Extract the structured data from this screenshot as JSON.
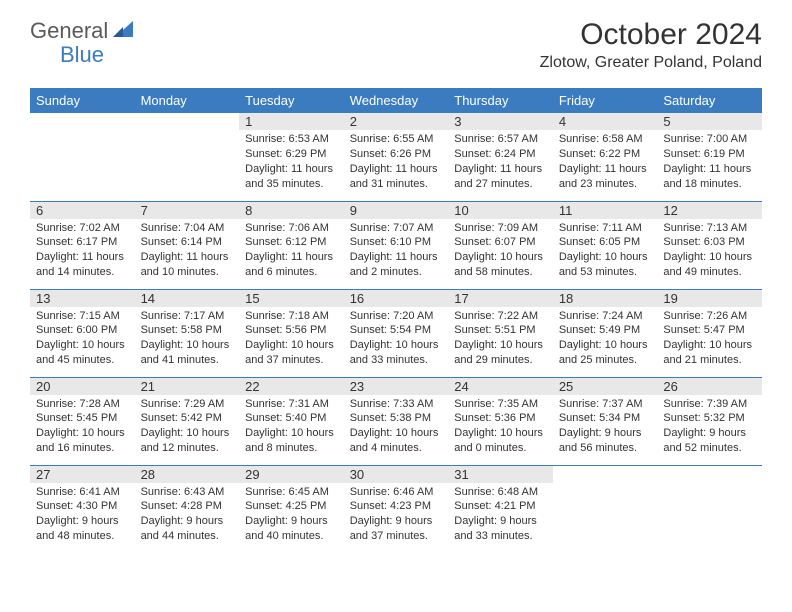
{
  "logo": {
    "part1": "General",
    "part2": "Blue"
  },
  "title": "October 2024",
  "location": "Zlotow, Greater Poland, Poland",
  "colors": {
    "accent": "#3b7bbf",
    "text": "#333333",
    "shade": "#e8e8e8"
  },
  "daynames": [
    "Sunday",
    "Monday",
    "Tuesday",
    "Wednesday",
    "Thursday",
    "Friday",
    "Saturday"
  ],
  "weeks": [
    [
      null,
      null,
      {
        "n": "1",
        "sr": "6:53 AM",
        "ss": "6:29 PM",
        "dl": "11 hours and 35 minutes."
      },
      {
        "n": "2",
        "sr": "6:55 AM",
        "ss": "6:26 PM",
        "dl": "11 hours and 31 minutes."
      },
      {
        "n": "3",
        "sr": "6:57 AM",
        "ss": "6:24 PM",
        "dl": "11 hours and 27 minutes."
      },
      {
        "n": "4",
        "sr": "6:58 AM",
        "ss": "6:22 PM",
        "dl": "11 hours and 23 minutes."
      },
      {
        "n": "5",
        "sr": "7:00 AM",
        "ss": "6:19 PM",
        "dl": "11 hours and 18 minutes."
      }
    ],
    [
      {
        "n": "6",
        "sr": "7:02 AM",
        "ss": "6:17 PM",
        "dl": "11 hours and 14 minutes."
      },
      {
        "n": "7",
        "sr": "7:04 AM",
        "ss": "6:14 PM",
        "dl": "11 hours and 10 minutes."
      },
      {
        "n": "8",
        "sr": "7:06 AM",
        "ss": "6:12 PM",
        "dl": "11 hours and 6 minutes."
      },
      {
        "n": "9",
        "sr": "7:07 AM",
        "ss": "6:10 PM",
        "dl": "11 hours and 2 minutes."
      },
      {
        "n": "10",
        "sr": "7:09 AM",
        "ss": "6:07 PM",
        "dl": "10 hours and 58 minutes."
      },
      {
        "n": "11",
        "sr": "7:11 AM",
        "ss": "6:05 PM",
        "dl": "10 hours and 53 minutes."
      },
      {
        "n": "12",
        "sr": "7:13 AM",
        "ss": "6:03 PM",
        "dl": "10 hours and 49 minutes."
      }
    ],
    [
      {
        "n": "13",
        "sr": "7:15 AM",
        "ss": "6:00 PM",
        "dl": "10 hours and 45 minutes."
      },
      {
        "n": "14",
        "sr": "7:17 AM",
        "ss": "5:58 PM",
        "dl": "10 hours and 41 minutes."
      },
      {
        "n": "15",
        "sr": "7:18 AM",
        "ss": "5:56 PM",
        "dl": "10 hours and 37 minutes."
      },
      {
        "n": "16",
        "sr": "7:20 AM",
        "ss": "5:54 PM",
        "dl": "10 hours and 33 minutes."
      },
      {
        "n": "17",
        "sr": "7:22 AM",
        "ss": "5:51 PM",
        "dl": "10 hours and 29 minutes."
      },
      {
        "n": "18",
        "sr": "7:24 AM",
        "ss": "5:49 PM",
        "dl": "10 hours and 25 minutes."
      },
      {
        "n": "19",
        "sr": "7:26 AM",
        "ss": "5:47 PM",
        "dl": "10 hours and 21 minutes."
      }
    ],
    [
      {
        "n": "20",
        "sr": "7:28 AM",
        "ss": "5:45 PM",
        "dl": "10 hours and 16 minutes."
      },
      {
        "n": "21",
        "sr": "7:29 AM",
        "ss": "5:42 PM",
        "dl": "10 hours and 12 minutes."
      },
      {
        "n": "22",
        "sr": "7:31 AM",
        "ss": "5:40 PM",
        "dl": "10 hours and 8 minutes."
      },
      {
        "n": "23",
        "sr": "7:33 AM",
        "ss": "5:38 PM",
        "dl": "10 hours and 4 minutes."
      },
      {
        "n": "24",
        "sr": "7:35 AM",
        "ss": "5:36 PM",
        "dl": "10 hours and 0 minutes."
      },
      {
        "n": "25",
        "sr": "7:37 AM",
        "ss": "5:34 PM",
        "dl": "9 hours and 56 minutes."
      },
      {
        "n": "26",
        "sr": "7:39 AM",
        "ss": "5:32 PM",
        "dl": "9 hours and 52 minutes."
      }
    ],
    [
      {
        "n": "27",
        "sr": "6:41 AM",
        "ss": "4:30 PM",
        "dl": "9 hours and 48 minutes."
      },
      {
        "n": "28",
        "sr": "6:43 AM",
        "ss": "4:28 PM",
        "dl": "9 hours and 44 minutes."
      },
      {
        "n": "29",
        "sr": "6:45 AM",
        "ss": "4:25 PM",
        "dl": "9 hours and 40 minutes."
      },
      {
        "n": "30",
        "sr": "6:46 AM",
        "ss": "4:23 PM",
        "dl": "9 hours and 37 minutes."
      },
      {
        "n": "31",
        "sr": "6:48 AM",
        "ss": "4:21 PM",
        "dl": "9 hours and 33 minutes."
      },
      null,
      null
    ]
  ],
  "labels": {
    "sunrise": "Sunrise:",
    "sunset": "Sunset:",
    "daylight": "Daylight:"
  }
}
